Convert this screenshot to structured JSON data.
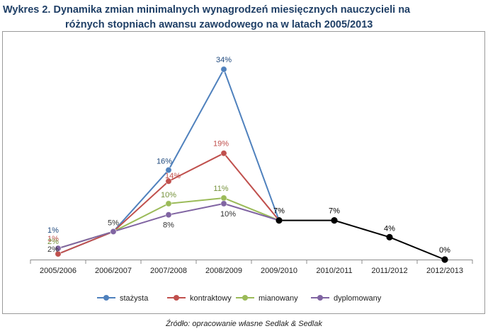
{
  "chart_data": {
    "type": "line",
    "title_line1": "Wykres 2. Dynamika zmian minimalnych wynagrodzeń miesięcznych nauczycieli na",
    "title_line2": "różnych stopniach awansu zawodowego na w latach 2005/2013",
    "categories": [
      "2005/2006",
      "2006/2007",
      "2007/2008",
      "2008/2009",
      "2009/2010",
      "2010/2011",
      "2011/2012",
      "2012/2013"
    ],
    "ylim": [
      0,
      36
    ],
    "grid": false,
    "legend_position": "bottom",
    "series": [
      {
        "name": "stażysta",
        "color": "#4f81bd",
        "label_color": "#1f497d",
        "values": [
          1,
          5,
          16,
          34,
          7,
          null,
          null,
          null
        ],
        "labels": [
          "1%",
          "",
          "16%",
          "34%",
          "",
          "",
          "",
          ""
        ]
      },
      {
        "name": "kontraktowy",
        "color": "#c0504d",
        "label_color": "#c0504d",
        "values": [
          1,
          5,
          14,
          19,
          7,
          null,
          null,
          null
        ],
        "labels": [
          "1%",
          "",
          "14%",
          "19%",
          "",
          "",
          "",
          ""
        ]
      },
      {
        "name": "mianowany",
        "color": "#9bbb59",
        "label_color": "#76923c",
        "values": [
          2,
          5,
          10,
          11,
          7,
          null,
          null,
          null
        ],
        "labels": [
          "2%",
          "",
          "10%",
          "11%",
          "",
          "",
          "",
          ""
        ]
      },
      {
        "name": "dyplomowany",
        "color": "#8064a2",
        "label_color": "#333333",
        "values": [
          2,
          5,
          8,
          10,
          7,
          null,
          null,
          null
        ],
        "labels": [
          "2%",
          "5%",
          "8%",
          "10%",
          "",
          "",
          "",
          ""
        ]
      },
      {
        "name": "all",
        "color": "#000000",
        "label_color": "#000000",
        "legend": false,
        "values": [
          null,
          null,
          null,
          null,
          7,
          7,
          4,
          0
        ],
        "labels": [
          "",
          "",
          "",
          "",
          "7%",
          "7%",
          "4%",
          "0%"
        ]
      }
    ]
  },
  "source": "Źródło: opracowanie własne Sedlak & Sedlak"
}
